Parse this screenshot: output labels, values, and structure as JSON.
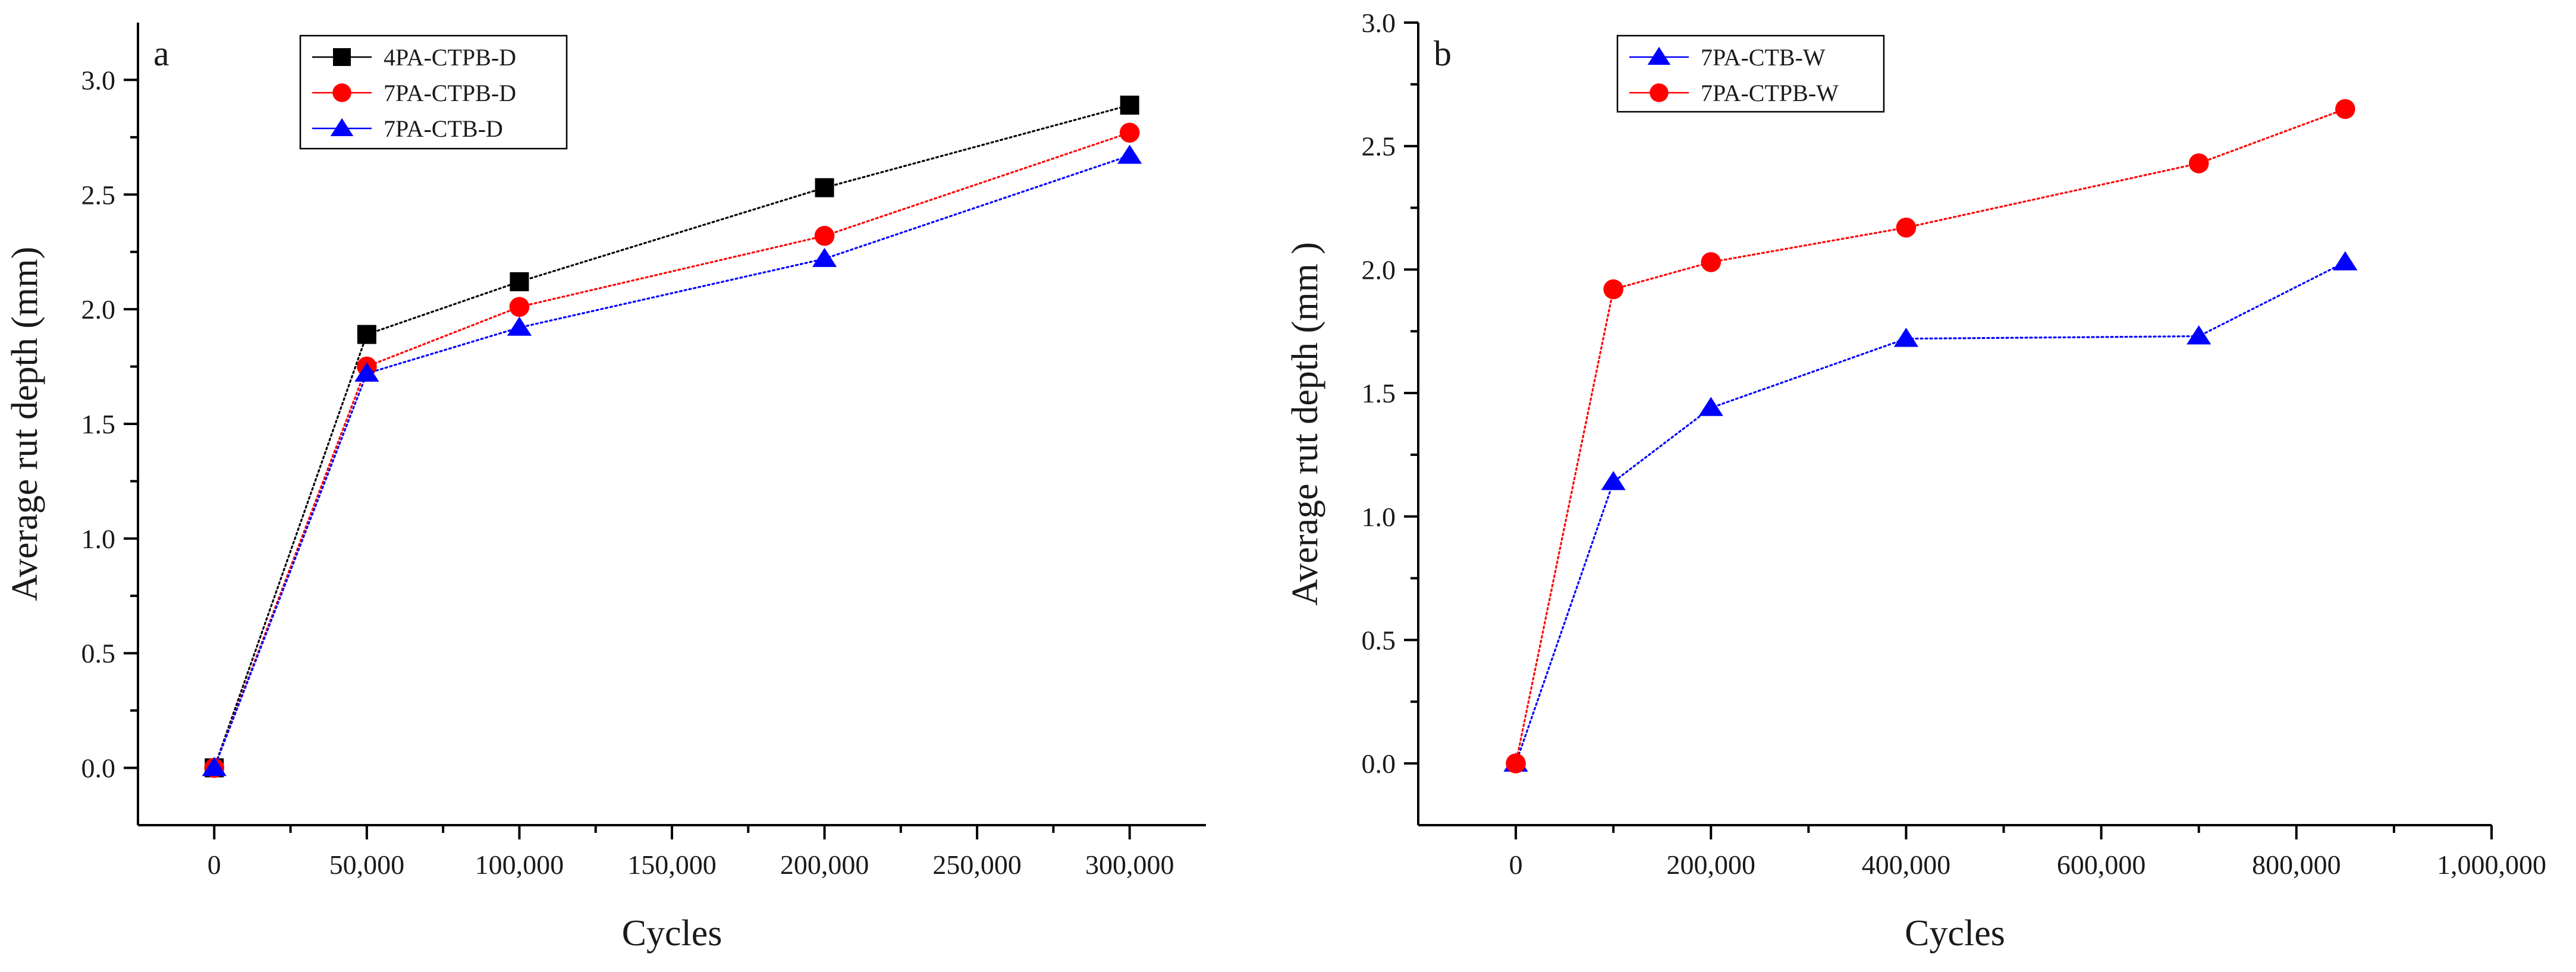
{
  "chart_data": [
    {
      "type": "line",
      "panel_label": "a",
      "xlabel": "Cycles",
      "ylabel": "Average rut depth (mm)",
      "xlim": [
        -25000,
        325000
      ],
      "ylim": [
        -0.25,
        3.25
      ],
      "x_ticks": [
        0,
        50000,
        100000,
        150000,
        200000,
        250000,
        300000
      ],
      "x_tick_labels": [
        "0",
        "50,000",
        "100,000",
        "150,000",
        "200,000",
        "250,000",
        "300,000"
      ],
      "y_ticks": [
        0,
        0.5,
        1,
        1.5,
        2,
        2.5,
        3
      ],
      "y_tick_labels": [
        "0.0",
        "0.5",
        "1.0",
        "1.5",
        "2.0",
        "2.5",
        "3.0"
      ],
      "x": [
        0,
        50000,
        100000,
        200000,
        300000
      ],
      "series": [
        {
          "name": "4PA-CTPB-D",
          "color": "#000000",
          "marker": "square",
          "values": [
            0,
            1.89,
            2.12,
            2.53,
            2.89
          ]
        },
        {
          "name": "7PA-CTPB-D",
          "color": "#ff0000",
          "marker": "circle",
          "values": [
            0,
            1.75,
            2.01,
            2.32,
            2.77
          ]
        },
        {
          "name": "7PA-CTB-D",
          "color": "#0000ff",
          "marker": "triangle",
          "values": [
            0,
            1.72,
            1.92,
            2.22,
            2.67
          ]
        }
      ],
      "legend": "top-left",
      "grid": false
    },
    {
      "type": "line",
      "panel_label": "b",
      "xlabel": "Cycles",
      "ylabel": "Average rut depth (mm )",
      "xlim": [
        -100000,
        1000000
      ],
      "ylim": [
        -0.25,
        3.0
      ],
      "x_ticks": [
        0,
        200000,
        400000,
        600000,
        800000,
        1000000
      ],
      "x_tick_labels": [
        "0",
        "200,000",
        "400,000",
        "600,000",
        "800,000",
        "1,000,000"
      ],
      "y_ticks": [
        0,
        0.5,
        1,
        1.5,
        2,
        2.5,
        3
      ],
      "y_tick_labels": [
        "0.0",
        "0.5",
        "1.0",
        "1.5",
        "2.0",
        "2.5",
        "3.0"
      ],
      "x": [
        0,
        100000,
        200000,
        400000,
        700000,
        850000
      ],
      "series": [
        {
          "name": "7PA-CTB-W",
          "color": "#0000ff",
          "marker": "triangle",
          "values": [
            0,
            1.14,
            1.44,
            1.72,
            1.73,
            2.03
          ]
        },
        {
          "name": "7PA-CTPB-W",
          "color": "#ff0000",
          "marker": "circle",
          "values": [
            0,
            1.92,
            2.03,
            2.17,
            2.43,
            2.65
          ]
        }
      ],
      "legend": "top-left",
      "grid": false
    }
  ]
}
